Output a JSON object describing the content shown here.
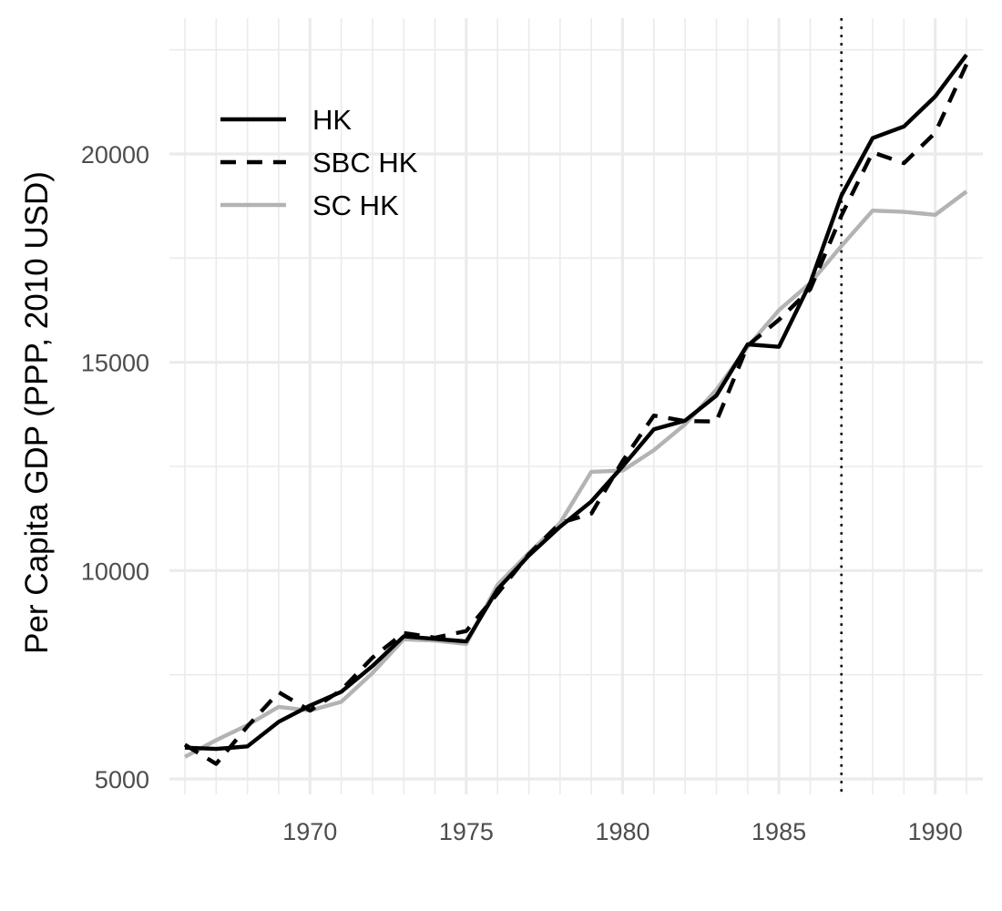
{
  "chart_data": {
    "type": "line",
    "title": "",
    "xlabel": "",
    "ylabel": "Per Capita GDP (PPP, 2010 USD)",
    "xlim": [
      1966,
      1991
    ],
    "ylim": [
      5000,
      22500
    ],
    "x_ticks": [
      1970,
      1975,
      1980,
      1985,
      1990
    ],
    "y_ticks": [
      5000,
      10000,
      15000,
      20000
    ],
    "grid": true,
    "legend_position": "top-left",
    "treatment_line": {
      "x": 1987,
      "style": "dotted",
      "color": "#000000"
    },
    "x": [
      1966,
      1967,
      1968,
      1969,
      1970,
      1971,
      1972,
      1973,
      1974,
      1975,
      1976,
      1977,
      1978,
      1979,
      1980,
      1981,
      1982,
      1983,
      1984,
      1985,
      1986,
      1987,
      1988,
      1989,
      1990,
      1991
    ],
    "series": [
      {
        "name": "HK",
        "color": "#000000",
        "dash": "solid",
        "values": [
          5750,
          5720,
          5780,
          6370,
          6760,
          7090,
          7710,
          8420,
          8360,
          8300,
          9550,
          10360,
          11050,
          11660,
          12500,
          13390,
          13600,
          14200,
          15430,
          15370,
          16900,
          19000,
          20380,
          20660,
          21380,
          22380
        ]
      },
      {
        "name": "SBC HK",
        "color": "#000000",
        "dash": "dashed",
        "values": [
          5820,
          5360,
          6260,
          7080,
          6640,
          7130,
          7910,
          8500,
          8390,
          8550,
          9450,
          10390,
          11140,
          11370,
          12630,
          13720,
          13590,
          13580,
          15400,
          16020,
          16750,
          18520,
          20040,
          19780,
          20510,
          22150
        ]
      },
      {
        "name": "SC HK",
        "color": "#b3b3b3",
        "dash": "solid",
        "values": [
          5530,
          5930,
          6290,
          6730,
          6640,
          6850,
          7540,
          8350,
          8320,
          8240,
          9660,
          10420,
          11140,
          12370,
          12400,
          12890,
          13510,
          14340,
          15370,
          16250,
          16900,
          17790,
          18640,
          18610,
          18540,
          19100
        ]
      }
    ]
  }
}
